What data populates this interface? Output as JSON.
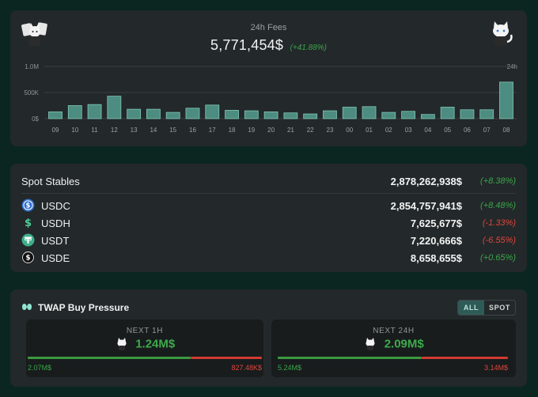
{
  "fees": {
    "title": "24h Fees",
    "amount": "5,771,454$",
    "change": "(+41.88%)",
    "mascot_left": "cat-group-icon",
    "mascot_right": "cat-icon"
  },
  "chart_data": {
    "type": "bar",
    "title": "",
    "categories": [
      "09",
      "10",
      "11",
      "12",
      "13",
      "14",
      "15",
      "16",
      "17",
      "18",
      "19",
      "20",
      "21",
      "22",
      "23",
      "00",
      "01",
      "02",
      "03",
      "04",
      "05",
      "06",
      "07",
      "08"
    ],
    "values": [
      130000,
      250000,
      270000,
      430000,
      180000,
      180000,
      120000,
      200000,
      260000,
      160000,
      150000,
      130000,
      110000,
      90000,
      150000,
      220000,
      230000,
      120000,
      140000,
      80000,
      220000,
      170000,
      170000,
      700000
    ],
    "y_ticks": [
      {
        "value": 0,
        "label": "0$"
      },
      {
        "value": 500000,
        "label": "500K"
      },
      {
        "value": 1000000,
        "label": "1.0M"
      }
    ],
    "ylim": [
      0,
      1000000
    ],
    "corner_label": "24h",
    "grid": true,
    "bar_color": "#4d8c80",
    "bar_stroke": "#7fc7b7"
  },
  "stables": {
    "label": "Spot Stables",
    "total": "2,878,262,938$",
    "total_change": "(+8.38%)",
    "rows": [
      {
        "icon": "usdc-coin-icon",
        "name": "USDC",
        "value": "2,854,757,941$",
        "change": "(+8.48%)",
        "trend": "pos",
        "color": "#2f6fd1"
      },
      {
        "icon": "usdh-coin-icon",
        "name": "USDH",
        "value": "7,625,677$",
        "change": "(-1.33%)",
        "trend": "neg",
        "color": "#4fcf9a"
      },
      {
        "icon": "usdt-coin-icon",
        "name": "USDT",
        "value": "7,220,666$",
        "change": "(-6.55%)",
        "trend": "neg",
        "color": "#3fae8a"
      },
      {
        "icon": "usde-coin-icon",
        "name": "USDE",
        "value": "8,658,655$",
        "change": "(+0.65%)",
        "trend": "pos",
        "color": "#111111"
      }
    ]
  },
  "twap": {
    "title": "TWAP Buy Pressure",
    "toggle_all": "ALL",
    "toggle_spot": "SPOT",
    "active_toggle": "ALL",
    "panels": [
      {
        "label": "NEXT 1H",
        "value": "1.24M$",
        "buy": "2.07M$",
        "sell": "827.48K$",
        "buy_fraction": 0.714
      },
      {
        "label": "NEXT 24H",
        "value": "2.09M$",
        "buy": "5.24M$",
        "sell": "3.14M$",
        "buy_fraction": 0.625
      }
    ]
  },
  "colors": {
    "background": "#0b2620",
    "card": "#23282a",
    "positive": "#3aa64a",
    "negative": "#e0453a",
    "accent": "#2f5b56"
  }
}
